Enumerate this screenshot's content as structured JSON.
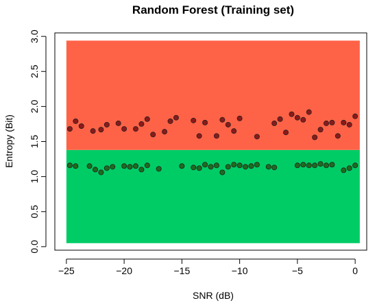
{
  "chart_data": {
    "type": "scatter",
    "title": "Random Forest (Training set)",
    "xlabel": "SNR (dB)",
    "ylabel": "Entropy (Bit)",
    "xlim": [
      -26,
      1
    ],
    "ylim": [
      -0.05,
      3.05
    ],
    "x_ticks": [
      -25,
      -20,
      -15,
      -10,
      -5,
      0
    ],
    "y_ticks": [
      0.0,
      0.5,
      1.0,
      1.5,
      2.0,
      2.5,
      3.0
    ],
    "x_tick_labels": [
      "−25",
      "−20",
      "−15",
      "−10",
      "−5",
      "0"
    ],
    "y_tick_labels": [
      "0.0",
      "0.5",
      "1.0",
      "1.5",
      "2.0",
      "2.5",
      "3.0"
    ],
    "regions": [
      {
        "x_range": [
          -25,
          0.4
        ],
        "y_range": [
          0.05,
          1.38
        ],
        "color": "#00cc66"
      },
      {
        "x_range": [
          -25,
          0.4
        ],
        "y_range": [
          1.38,
          2.94
        ],
        "color": "#ff6347"
      }
    ],
    "point_color": "#8b1a1a",
    "point_color_low": "#1e6b1e",
    "points": [
      {
        "x": -24.7,
        "y": 1.68
      },
      {
        "x": -24.2,
        "y": 1.79
      },
      {
        "x": -23.7,
        "y": 1.72
      },
      {
        "x": -22.7,
        "y": 1.65
      },
      {
        "x": -22.0,
        "y": 1.67
      },
      {
        "x": -21.5,
        "y": 1.74
      },
      {
        "x": -20.5,
        "y": 1.76
      },
      {
        "x": -20.0,
        "y": 1.68
      },
      {
        "x": -19.0,
        "y": 1.68
      },
      {
        "x": -18.5,
        "y": 1.75
      },
      {
        "x": -18.0,
        "y": 1.82
      },
      {
        "x": -17.5,
        "y": 1.6
      },
      {
        "x": -16.5,
        "y": 1.64
      },
      {
        "x": -16.0,
        "y": 1.79
      },
      {
        "x": -15.5,
        "y": 1.84
      },
      {
        "x": -14.0,
        "y": 1.8
      },
      {
        "x": -13.5,
        "y": 1.58
      },
      {
        "x": -13.0,
        "y": 1.77
      },
      {
        "x": -12.0,
        "y": 1.58
      },
      {
        "x": -11.5,
        "y": 1.81
      },
      {
        "x": -11.0,
        "y": 1.74
      },
      {
        "x": -10.5,
        "y": 1.65
      },
      {
        "x": -10.0,
        "y": 1.83
      },
      {
        "x": -8.5,
        "y": 1.57
      },
      {
        "x": -7.0,
        "y": 1.76
      },
      {
        "x": -6.5,
        "y": 1.82
      },
      {
        "x": -6.0,
        "y": 1.63
      },
      {
        "x": -5.5,
        "y": 1.89
      },
      {
        "x": -5.0,
        "y": 1.84
      },
      {
        "x": -4.5,
        "y": 1.81
      },
      {
        "x": -4.0,
        "y": 1.92
      },
      {
        "x": -3.5,
        "y": 1.56
      },
      {
        "x": -3.0,
        "y": 1.67
      },
      {
        "x": -2.5,
        "y": 1.76
      },
      {
        "x": -2.0,
        "y": 1.77
      },
      {
        "x": -1.5,
        "y": 1.58
      },
      {
        "x": -1.0,
        "y": 1.77
      },
      {
        "x": -0.5,
        "y": 1.74
      },
      {
        "x": 0.0,
        "y": 1.86
      },
      {
        "x": -24.7,
        "y": 1.16
      },
      {
        "x": -24.2,
        "y": 1.15
      },
      {
        "x": -23.0,
        "y": 1.15
      },
      {
        "x": -22.5,
        "y": 1.1
      },
      {
        "x": -22.0,
        "y": 1.06
      },
      {
        "x": -21.5,
        "y": 1.12
      },
      {
        "x": -21.0,
        "y": 1.14
      },
      {
        "x": -20.0,
        "y": 1.15
      },
      {
        "x": -19.5,
        "y": 1.14
      },
      {
        "x": -19.0,
        "y": 1.15
      },
      {
        "x": -18.5,
        "y": 1.1
      },
      {
        "x": -18.0,
        "y": 1.16
      },
      {
        "x": -17.0,
        "y": 1.11
      },
      {
        "x": -15.0,
        "y": 1.15
      },
      {
        "x": -14.0,
        "y": 1.13
      },
      {
        "x": -13.5,
        "y": 1.12
      },
      {
        "x": -13.0,
        "y": 1.17
      },
      {
        "x": -12.5,
        "y": 1.14
      },
      {
        "x": -12.0,
        "y": 1.16
      },
      {
        "x": -11.5,
        "y": 1.06
      },
      {
        "x": -11.0,
        "y": 1.14
      },
      {
        "x": -10.5,
        "y": 1.17
      },
      {
        "x": -10.0,
        "y": 1.16
      },
      {
        "x": -9.5,
        "y": 1.14
      },
      {
        "x": -9.0,
        "y": 1.15
      },
      {
        "x": -8.5,
        "y": 1.17
      },
      {
        "x": -7.5,
        "y": 1.14
      },
      {
        "x": -7.0,
        "y": 1.13
      },
      {
        "x": -5.0,
        "y": 1.16
      },
      {
        "x": -4.5,
        "y": 1.17
      },
      {
        "x": -4.0,
        "y": 1.16
      },
      {
        "x": -3.5,
        "y": 1.16
      },
      {
        "x": -3.0,
        "y": 1.18
      },
      {
        "x": -2.5,
        "y": 1.16
      },
      {
        "x": -2.0,
        "y": 1.17
      },
      {
        "x": -1.0,
        "y": 1.09
      },
      {
        "x": -0.5,
        "y": 1.12
      },
      {
        "x": 0.0,
        "y": 1.16
      }
    ]
  }
}
